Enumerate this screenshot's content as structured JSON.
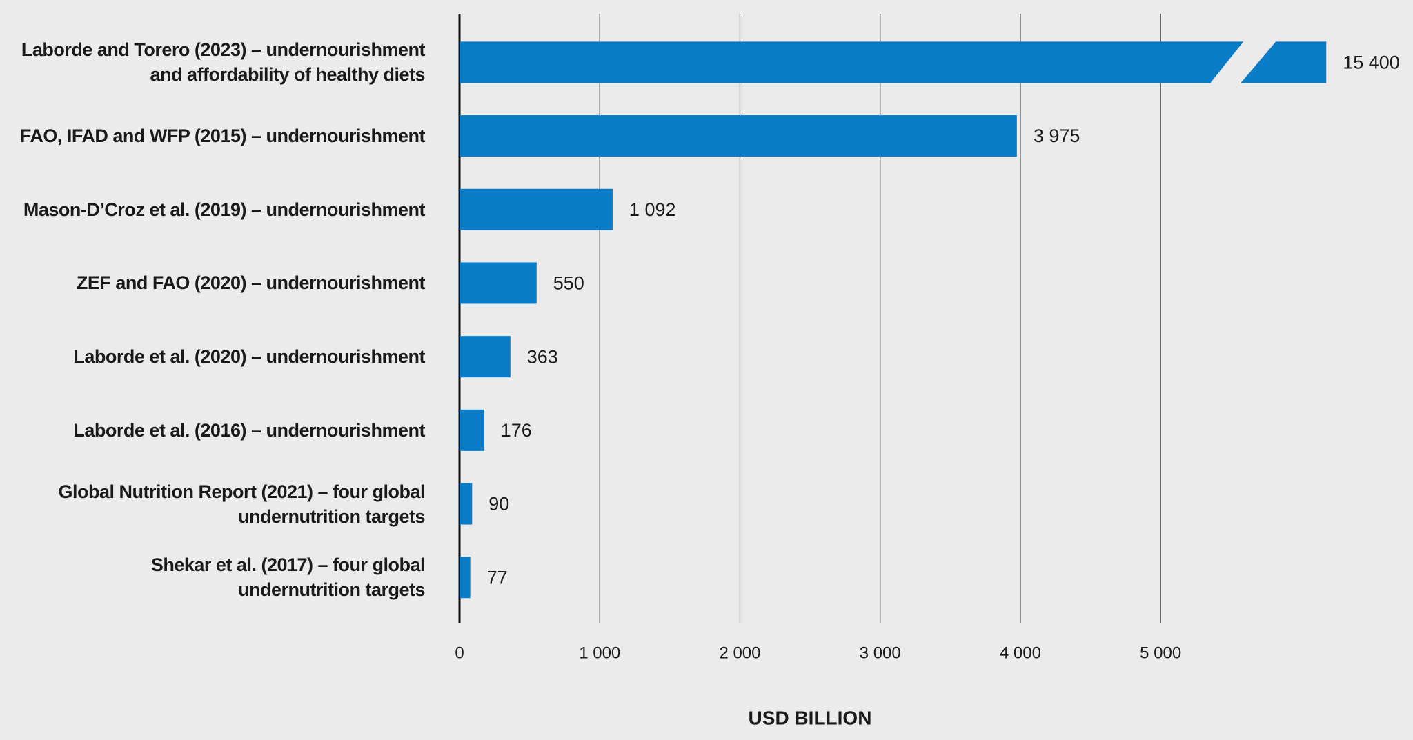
{
  "chart_data": {
    "type": "bar",
    "orientation": "horizontal",
    "categories": [
      "Laborde and Torero (2023) – undernourishment\nand affordability of healthy diets",
      "FAO, IFAD and WFP (2015) – undernourishment",
      "Mason-D’Croz et al. (2019) – undernourishment",
      "ZEF and FAO (2020) – undernourishment",
      "Laborde et al. (2020) – undernourishment",
      "Laborde et al. (2016) – undernourishment",
      "Global Nutrition Report (2021) – four global\nundernutrition targets",
      "Shekar et al. (2017) – four global\nundernutrition targets"
    ],
    "values": [
      15400,
      3975,
      1092,
      550,
      363,
      176,
      90,
      77
    ],
    "value_labels": [
      "15 400",
      "3 975",
      "1 092",
      "550",
      "363",
      "176",
      "90",
      "77"
    ],
    "color": "#0a7cc8",
    "xlabel": "USD BILLION",
    "xlim": [
      0,
      6800
    ],
    "xticks": [
      0,
      {
        "value": 1000,
        "label": "1 000"
      },
      {
        "value": 2000,
        "label": "2 000"
      },
      {
        "value": 3000,
        "label": "3 000"
      },
      {
        "value": 4000,
        "label": "4 000"
      },
      {
        "value": 5000,
        "label": "5 000"
      }
    ],
    "grid": true
  }
}
